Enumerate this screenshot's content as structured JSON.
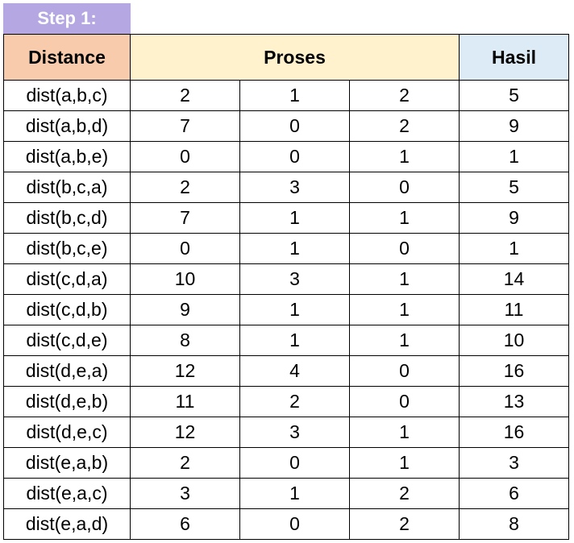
{
  "step_label": "Step 1:",
  "headers": {
    "distance": "Distance",
    "proses": "Proses",
    "hasil": "Hasil"
  },
  "colors": {
    "step_badge": "#b4a7e2",
    "distance_header": "#f8cbad",
    "proses_header": "#fff2cc",
    "hasil_header": "#ddebf7"
  },
  "rows": [
    {
      "distance": "dist(a,b,c)",
      "p1": "2",
      "p2": "1",
      "p3": "2",
      "hasil": "5"
    },
    {
      "distance": "dist(a,b,d)",
      "p1": "7",
      "p2": "0",
      "p3": "2",
      "hasil": "9"
    },
    {
      "distance": "dist(a,b,e)",
      "p1": "0",
      "p2": "0",
      "p3": "1",
      "hasil": "1"
    },
    {
      "distance": "dist(b,c,a)",
      "p1": "2",
      "p2": "3",
      "p3": "0",
      "hasil": "5"
    },
    {
      "distance": "dist(b,c,d)",
      "p1": "7",
      "p2": "1",
      "p3": "1",
      "hasil": "9"
    },
    {
      "distance": "dist(b,c,e)",
      "p1": "0",
      "p2": "1",
      "p3": "0",
      "hasil": "1"
    },
    {
      "distance": "dist(c,d,a)",
      "p1": "10",
      "p2": "3",
      "p3": "1",
      "hasil": "14"
    },
    {
      "distance": "dist(c,d,b)",
      "p1": "9",
      "p2": "1",
      "p3": "1",
      "hasil": "11"
    },
    {
      "distance": "dist(c,d,e)",
      "p1": "8",
      "p2": "1",
      "p3": "1",
      "hasil": "10"
    },
    {
      "distance": "dist(d,e,a)",
      "p1": "12",
      "p2": "4",
      "p3": "0",
      "hasil": "16"
    },
    {
      "distance": "dist(d,e,b)",
      "p1": "11",
      "p2": "2",
      "p3": "0",
      "hasil": "13"
    },
    {
      "distance": "dist(d,e,c)",
      "p1": "12",
      "p2": "3",
      "p3": "1",
      "hasil": "16"
    },
    {
      "distance": "dist(e,a,b)",
      "p1": "2",
      "p2": "0",
      "p3": "1",
      "hasil": "3"
    },
    {
      "distance": "dist(e,a,c)",
      "p1": "3",
      "p2": "1",
      "p3": "2",
      "hasil": "6"
    },
    {
      "distance": "dist(e,a,d)",
      "p1": "6",
      "p2": "0",
      "p3": "2",
      "hasil": "8"
    }
  ]
}
